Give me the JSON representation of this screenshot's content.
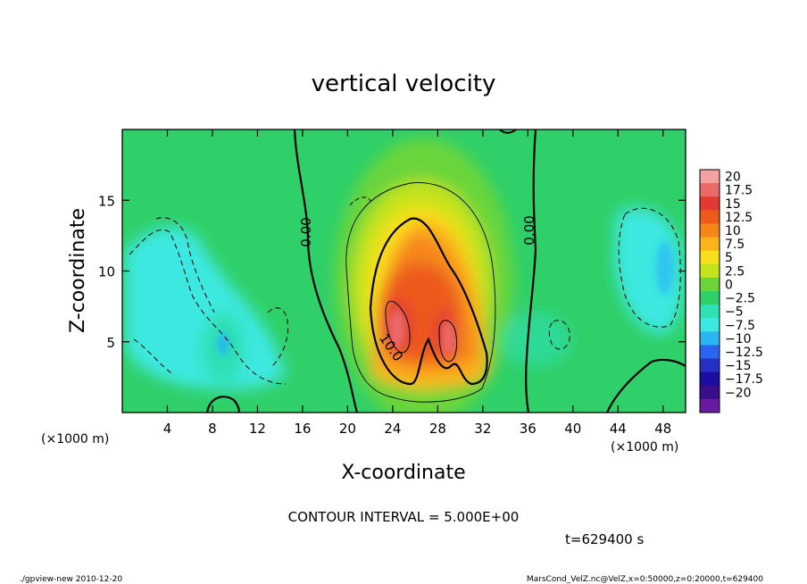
{
  "chart_data": {
    "type": "heatmap",
    "title": "vertical velocity",
    "xlabel": "X-coordinate",
    "ylabel": "Z-coordinate",
    "x_unit_left": "(×1000 m)",
    "x_unit_right": "(×1000 m)",
    "xlim": [
      0,
      50
    ],
    "ylim": [
      0,
      20
    ],
    "xticks": [
      4,
      8,
      12,
      16,
      20,
      24,
      28,
      32,
      36,
      40,
      44,
      48
    ],
    "yticks": [
      5,
      10,
      15
    ],
    "colorbar": {
      "labels": [
        "20",
        "17.5",
        "15",
        "12.5",
        "10",
        "7.5",
        "5",
        "2.5",
        "0",
        "−2.5",
        "−5",
        "−7.5",
        "−10",
        "−12.5",
        "−15",
        "−17.5",
        "−20"
      ],
      "colors": [
        "#f3a1a1",
        "#ea6a6a",
        "#e13a35",
        "#ec5a1c",
        "#f6861a",
        "#fbb21b",
        "#f7df1e",
        "#c5e31d",
        "#6ad53a",
        "#2fd069",
        "#2fe0b4",
        "#3de8e0",
        "#2ab6f2",
        "#2b64f0",
        "#2431c4",
        "#1b0ea3",
        "#3a0d8a",
        "#6a1aa0"
      ]
    },
    "contour_labels": [
      "0.00",
      "0.00",
      "10.0"
    ],
    "contour_interval_text": "CONTOUR INTERVAL = 5.000E+00",
    "time_text": "t=629400 s",
    "features": [
      {
        "name": "updraft core",
        "x_center": 27,
        "z_center": 7,
        "max_value": 17.5
      },
      {
        "name": "downdraft left",
        "x_center": 9,
        "z_center": 6,
        "min_value": -10
      },
      {
        "name": "downdraft right",
        "x_center": 47,
        "z_center": 10,
        "min_value": -7.5
      }
    ]
  },
  "footer": {
    "left": "./gpview-new  2010-12-20",
    "right": "MarsCond_VelZ.nc@VelZ,x=0:50000,z=0:20000,t=629400"
  }
}
